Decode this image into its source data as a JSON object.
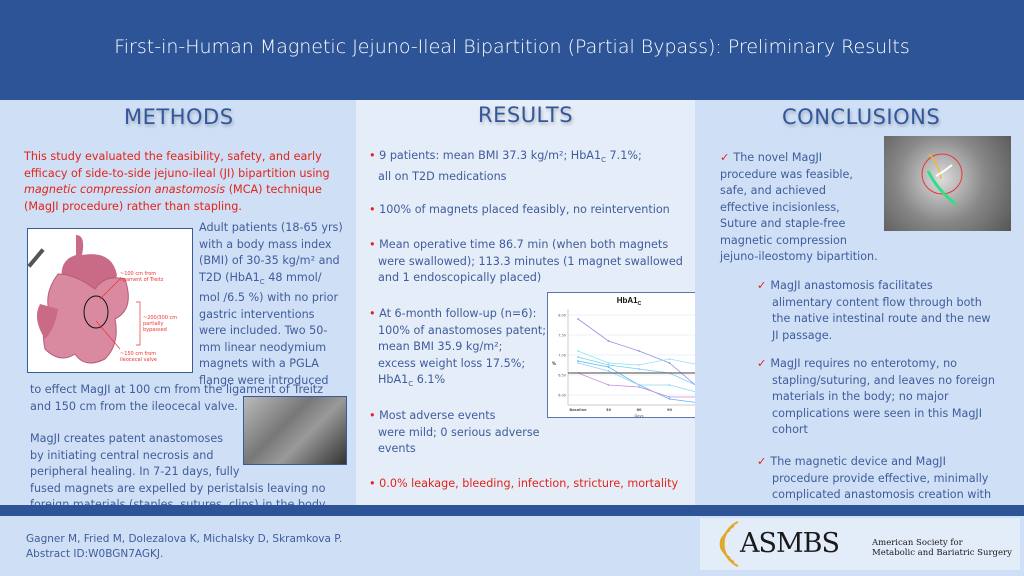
{
  "title": "First-in-Human Magnetic Jejuno-Ileal Bipartition (Partial Bypass): Preliminary Results",
  "methods": {
    "heading": "METHODS",
    "intro_1": "This study evaluated the feasibility, safety, and early efficacy of side-to-side jejuno-ileal (JI) bipartition using ",
    "intro_em": "magnetic compression anastomosis",
    "intro_2": " (MCA) technique (MagJI procedure) rather than stapling.",
    "para2_lines": [
      "Adult patients (18-65 yrs)",
      "with a body mass index",
      "(BMI) of 30-35 kg/m² and",
      "T2D (HbA1",
      "mol /6.5 %) with no prior",
      "gastric interventions",
      "were included. Two 50-",
      "mm linear neodymium",
      "magnets with a PGLA",
      "flange were introduced"
    ],
    "para2_sub": "C",
    "para2_tail": " 48 mmol/",
    "para2_cont": [
      "to effect MagJI at 100 cm from the ligament of Treitz",
      "and 150 cm from the ileocecal valve."
    ],
    "para3_lines": [
      "MagJI creates patent anastomoses",
      "by initiating central necrosis and",
      "peripheral healing.  In 7-21 days, fully",
      "fused magnets are expelled by peristalsis leaving no",
      "foreign materials (staples, sutures, clips) in the body."
    ],
    "diagram_labels": {
      "a": "~100 cm from",
      "b": "ligament of Treitz",
      "c": "~200/300 cm",
      "d": "partially",
      "e": "bypassed",
      "f": "~150 cm from",
      "g": "ileocecal valve"
    }
  },
  "results": {
    "heading": "RESULTS",
    "b1": [
      "9 patients: mean BMI 37.3 kg/m²; HbA1",
      " 7.1%;",
      "all on T2D medications"
    ],
    "b2": "100% of magnets placed feasibly, no reintervention",
    "b3": [
      "Mean operative time 86.7 min (when both magnets",
      "were swallowed); 113.3 minutes (1 magnet swallowed",
      "and 1 endoscopically placed)"
    ],
    "b4": [
      "At 6-month follow-up (n=6):",
      "100% of anastomoses patent;",
      "mean BMI 35.9 kg/m²;",
      "excess weight loss 17.5%;",
      "HbA1",
      " 6.1%"
    ],
    "b5": [
      "Most adverse events",
      "were mild; 0 serious adverse",
      "events"
    ],
    "b6": "0.0% leakage, bleeding, infection, stricture, mortality",
    "sub": "C"
  },
  "chart_data": {
    "type": "line",
    "title": "HbA1C",
    "xlabel": "Days",
    "ylabel": "%",
    "categories": [
      "Baseline",
      "30",
      "60",
      "90",
      "180"
    ],
    "yticks": [
      "8.00",
      "7.50",
      "7.00",
      "6.50",
      "6.00"
    ],
    "ylim": [
      5.75,
      8.15
    ],
    "reference_line": 6.55,
    "series": [
      {
        "name": "patient 1",
        "color": "#9a8ee8",
        "values": [
          7.9,
          7.35,
          7.1,
          6.8,
          6.15
        ]
      },
      {
        "name": "patient 2",
        "color": "#8fe3f5",
        "values": [
          7.1,
          6.8,
          6.75,
          6.9,
          6.75
        ]
      },
      {
        "name": "patient 3",
        "color": "#6fd0ef",
        "values": [
          6.95,
          6.75,
          6.65,
          6.55,
          6.2
        ]
      },
      {
        "name": "patient 4",
        "color": "#5ab8ee",
        "values": [
          6.85,
          6.7,
          6.25,
          5.9,
          5.8
        ]
      },
      {
        "name": "patient 5",
        "color": "#90d6f5",
        "values": [
          6.8,
          6.6,
          6.25,
          6.25,
          6.05
        ]
      },
      {
        "name": "patient 6",
        "color": "#c98ee0",
        "values": [
          6.55,
          6.25,
          6.2,
          5.95,
          5.95
        ]
      }
    ]
  },
  "conclusions": {
    "heading": "CONCLUSIONS",
    "c1": [
      "The novel MagJI",
      "procedure was feasible,",
      "safe, and achieved",
      "effective incisionless,",
      "Suture and staple-free",
      "magnetic compression",
      "jejuno-ileostomy bipartition."
    ],
    "c2": [
      "MagJI anastomosis facilitates",
      "alimentary content flow through both",
      "the native intestinal route and the new",
      "JI passage."
    ],
    "c3": [
      "MagJI requires no enterotomy, no",
      "stapling/suturing, and leaves no foreign",
      "materials in the body; no major",
      "complications were seen in this MagJI",
      "cohort"
    ],
    "c4": [
      "The magnetic device and MagJI",
      "procedure provide effective, minimally",
      "complicated anastomosis creation with"
    ],
    "check": "✓"
  },
  "footer": {
    "authors": "Gagner M, Fried M, Dolezalova K, Michalsky D, Skramkova P.",
    "abstract": "Abstract ID:W0BGN7AGKJ.",
    "logo_text": "ASMBS",
    "logo_sub1": "American Society for",
    "logo_sub2": "Metabolic and Bariatric Surgery"
  }
}
